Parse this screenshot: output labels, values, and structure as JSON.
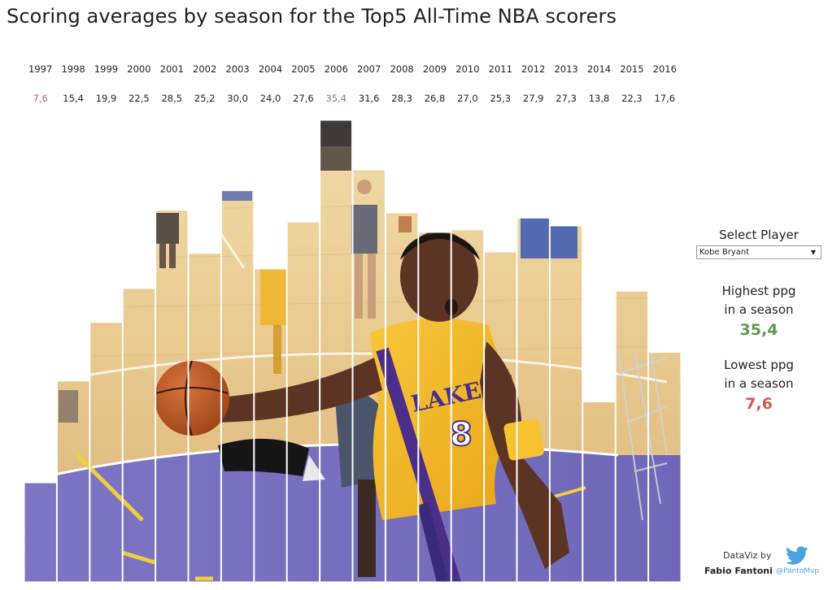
{
  "title": "Scoring averages by season for the Top5 All-Time NBA scorers",
  "selector": {
    "label": "Select Player",
    "selected": "Kobe Bryant"
  },
  "stats": {
    "highest_label_line1": "Highest ppg",
    "highest_label_line2": "in a season",
    "highest_value": "35,4",
    "lowest_label_line1": "Lowest ppg",
    "lowest_label_line2": "in a season",
    "lowest_value": "7,6"
  },
  "credit": {
    "by": "DataViz by",
    "author": "Fabio Fantoni",
    "handle": "@PantoMvp",
    "icon": "twitter-bird-icon"
  },
  "colors": {
    "low": "#d45a4f",
    "high": "#5a9a55",
    "twitter": "#4aa3df"
  },
  "chart_data": {
    "type": "bar",
    "categories": [
      "1997",
      "1998",
      "1999",
      "2000",
      "2001",
      "2002",
      "2003",
      "2004",
      "2005",
      "2006",
      "2007",
      "2008",
      "2009",
      "2010",
      "2011",
      "2012",
      "2013",
      "2014",
      "2015",
      "2016"
    ],
    "values": [
      7.6,
      15.4,
      19.9,
      22.5,
      28.5,
      25.2,
      30.0,
      24.0,
      27.6,
      35.4,
      31.6,
      28.3,
      26.8,
      27.0,
      25.3,
      27.9,
      27.3,
      13.8,
      22.3,
      17.6
    ],
    "value_labels": [
      "7,6",
      "15,4",
      "19,9",
      "22,5",
      "28,5",
      "25,2",
      "30,0",
      "24,0",
      "27,6",
      "35,4",
      "31,6",
      "28,3",
      "26,8",
      "27,0",
      "25,3",
      "27,9",
      "27,3",
      "13,8",
      "22,3",
      "17,6"
    ],
    "ylim": [
      0,
      35.4
    ],
    "grid": false,
    "bar_fill": "photo"
  }
}
